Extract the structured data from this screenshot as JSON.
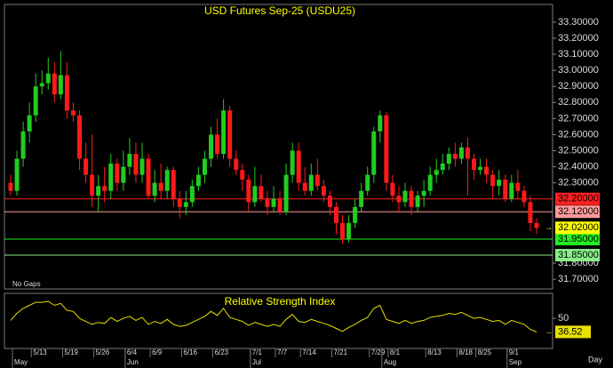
{
  "chart_data": {
    "type": "candlestick",
    "title": "USD Futures  Sep-25  (USDU25)",
    "note": "No Gaps",
    "period": "Day",
    "x_labels": [
      null,
      null,
      null,
      null,
      "5/13",
      null,
      null,
      null,
      null,
      "5/19",
      null,
      null,
      null,
      null,
      "5/26",
      null,
      null,
      null,
      null,
      "6/4",
      null,
      null,
      null,
      "6/9",
      null,
      null,
      null,
      null,
      "6/16",
      null,
      null,
      null,
      null,
      "6/23",
      null,
      null,
      null,
      null,
      null,
      "7/1",
      null,
      null,
      null,
      "7/7",
      null,
      null,
      null,
      "7/14",
      null,
      null,
      null,
      null,
      "7/21",
      null,
      null,
      null,
      null,
      null,
      "7/29",
      null,
      null,
      "8/1",
      null,
      null,
      null,
      null,
      null,
      "8/13",
      null,
      null,
      null,
      null,
      "8/18",
      null,
      null,
      "8/25",
      null,
      null,
      null,
      null,
      "9/1",
      null,
      null,
      null,
      null
    ],
    "month_labels": [
      null,
      "May",
      null,
      null,
      null,
      null,
      null,
      null,
      null,
      null,
      null,
      null,
      null,
      null,
      null,
      null,
      null,
      null,
      null,
      "Jun",
      null,
      null,
      null,
      null,
      null,
      null,
      null,
      null,
      null,
      null,
      null,
      null,
      null,
      null,
      null,
      null,
      null,
      null,
      null,
      "Jul",
      null,
      null,
      null,
      null,
      null,
      null,
      null,
      null,
      null,
      null,
      null,
      null,
      null,
      null,
      null,
      null,
      null,
      null,
      null,
      null,
      "Aug",
      null,
      null,
      null,
      null,
      null,
      null,
      null,
      null,
      null,
      null,
      null,
      null,
      null,
      null,
      null,
      null,
      null,
      null,
      null,
      "Sep",
      null,
      null,
      null,
      null
    ],
    "open": [
      32.3,
      32.25,
      32.45,
      32.62,
      32.72,
      32.9,
      32.92,
      32.98,
      32.85,
      32.97,
      32.75,
      32.72,
      32.45,
      32.35,
      32.22,
      32.28,
      32.25,
      32.42,
      32.3,
      32.4,
      32.48,
      32.35,
      32.45,
      32.22,
      32.3,
      32.25,
      32.38,
      32.2,
      32.15,
      32.18,
      32.28,
      32.35,
      32.45,
      32.6,
      32.48,
      32.75,
      32.45,
      32.38,
      32.32,
      32.18,
      32.28,
      32.2,
      32.15,
      32.2,
      32.12,
      32.35,
      32.5,
      32.3,
      32.25,
      32.35,
      32.28,
      32.22,
      32.15,
      32.05,
      31.95,
      32.05,
      32.15,
      32.25,
      32.35,
      32.62,
      32.72,
      32.3,
      32.22,
      32.18,
      32.25,
      32.15,
      32.22,
      32.25,
      32.35,
      32.38,
      32.42,
      32.48,
      32.45,
      32.52,
      32.45,
      32.38,
      32.4,
      32.35,
      32.28,
      32.32,
      32.2,
      32.3,
      32.25,
      32.18,
      32.05
    ],
    "high": [
      32.35,
      32.5,
      32.68,
      32.8,
      32.98,
      33.0,
      33.08,
      33.05,
      33.12,
      33.05,
      32.8,
      32.75,
      32.55,
      32.6,
      32.35,
      32.4,
      32.48,
      32.45,
      32.5,
      32.58,
      32.55,
      32.55,
      32.48,
      32.38,
      32.42,
      32.4,
      32.4,
      32.25,
      32.25,
      32.32,
      32.4,
      32.5,
      32.65,
      32.7,
      32.82,
      32.78,
      32.5,
      32.42,
      32.35,
      32.4,
      32.35,
      32.25,
      32.28,
      32.25,
      32.42,
      32.55,
      32.55,
      32.4,
      32.42,
      32.45,
      32.32,
      32.25,
      32.18,
      32.1,
      32.1,
      32.2,
      32.3,
      32.4,
      32.65,
      32.75,
      32.74,
      32.35,
      32.28,
      32.3,
      32.28,
      32.25,
      32.32,
      32.4,
      32.45,
      32.48,
      32.52,
      32.55,
      32.55,
      32.58,
      32.48,
      32.45,
      32.45,
      32.38,
      32.38,
      32.35,
      32.35,
      32.38,
      32.28,
      32.22,
      32.08
    ],
    "low": [
      32.22,
      32.22,
      32.4,
      32.55,
      32.68,
      32.85,
      32.88,
      32.8,
      32.82,
      32.7,
      32.68,
      32.38,
      32.3,
      32.15,
      32.12,
      32.18,
      32.2,
      32.25,
      32.25,
      32.35,
      32.3,
      32.3,
      32.2,
      32.18,
      32.2,
      32.2,
      32.15,
      32.08,
      32.1,
      32.15,
      32.25,
      32.3,
      32.4,
      32.45,
      32.45,
      32.4,
      32.35,
      32.25,
      32.12,
      32.15,
      32.18,
      32.1,
      32.12,
      32.1,
      32.1,
      32.3,
      32.25,
      32.22,
      32.22,
      32.25,
      32.18,
      32.1,
      31.98,
      31.92,
      31.93,
      32.02,
      32.12,
      32.22,
      32.3,
      32.55,
      32.25,
      32.18,
      32.12,
      32.15,
      32.1,
      32.12,
      32.15,
      32.22,
      32.3,
      32.35,
      32.38,
      32.4,
      32.42,
      32.22,
      32.32,
      32.35,
      32.3,
      32.2,
      32.22,
      32.18,
      32.18,
      32.2,
      32.15,
      32.0,
      31.98
    ],
    "close": [
      32.25,
      32.45,
      32.62,
      32.72,
      32.9,
      32.92,
      32.98,
      32.85,
      32.97,
      32.75,
      32.72,
      32.45,
      32.35,
      32.22,
      32.28,
      32.25,
      32.42,
      32.3,
      32.4,
      32.48,
      32.35,
      32.45,
      32.22,
      32.3,
      32.25,
      32.38,
      32.2,
      32.15,
      32.18,
      32.28,
      32.35,
      32.45,
      32.6,
      32.48,
      32.75,
      32.45,
      32.38,
      32.32,
      32.18,
      32.28,
      32.2,
      32.15,
      32.2,
      32.12,
      32.35,
      32.5,
      32.3,
      32.25,
      32.35,
      32.28,
      32.22,
      32.15,
      32.05,
      31.95,
      32.05,
      32.15,
      32.25,
      32.35,
      32.62,
      32.72,
      32.3,
      32.22,
      32.18,
      32.25,
      32.15,
      32.22,
      32.25,
      32.35,
      32.38,
      32.42,
      32.48,
      32.45,
      32.52,
      32.45,
      32.38,
      32.4,
      32.35,
      32.28,
      32.32,
      32.2,
      32.3,
      32.25,
      32.18,
      32.05,
      32.02
    ],
    "up_color": "#22cc22",
    "down_color": "#ff1a1a",
    "ylim": [
      31.64,
      33.41
    ],
    "yticks": [
      {
        "value": 33.3,
        "label": "33.30000"
      },
      {
        "value": 33.2,
        "label": "33.20000"
      },
      {
        "value": 33.1,
        "label": "33.10000"
      },
      {
        "value": 33.0,
        "label": "33.00000"
      },
      {
        "value": 32.9,
        "label": "32.90000"
      },
      {
        "value": 32.8,
        "label": "32.80000"
      },
      {
        "value": 32.7,
        "label": "32.70000"
      },
      {
        "value": 32.6,
        "label": "32.60000"
      },
      {
        "value": 32.5,
        "label": "32.50000"
      },
      {
        "value": 32.4,
        "label": "32.40000"
      },
      {
        "value": 32.3,
        "label": "32.30000"
      },
      {
        "value": 31.8,
        "label": "31.80000"
      },
      {
        "value": 31.7,
        "label": "31.70000"
      }
    ],
    "levels": [
      {
        "value": 32.2,
        "label": "32.20000",
        "color": "#ff2020"
      },
      {
        "value": 32.12,
        "label": "32.12000",
        "color": "#ff9a9a"
      },
      {
        "value": 31.95,
        "label": "31.95000",
        "color": "#22ee22"
      },
      {
        "value": 31.85,
        "label": "31.85000",
        "color": "#88ee88"
      }
    ],
    "last_price": {
      "value": 32.02,
      "label": "32.02000",
      "color": "#ffff00"
    },
    "rsi": {
      "title": "Relative Strength Index",
      "color": "#e8e000",
      "ylim": [
        20,
        75
      ],
      "yticks": [
        50
      ],
      "values": [
        48,
        55,
        60,
        63,
        66,
        66,
        67,
        63,
        65,
        58,
        57,
        50,
        47,
        44,
        46,
        45,
        51,
        47,
        50,
        52,
        48,
        51,
        44,
        47,
        45,
        49,
        44,
        42,
        43,
        46,
        49,
        52,
        57,
        53,
        60,
        51,
        49,
        47,
        43,
        46,
        44,
        42,
        44,
        42,
        49,
        54,
        47,
        46,
        49,
        47,
        45,
        43,
        40,
        37,
        41,
        44,
        48,
        51,
        60,
        63,
        49,
        47,
        45,
        48,
        45,
        47,
        48,
        51,
        52,
        53,
        55,
        54,
        56,
        53,
        50,
        51,
        49,
        47,
        48,
        44,
        48,
        46,
        44,
        39,
        36.52
      ]
    }
  }
}
